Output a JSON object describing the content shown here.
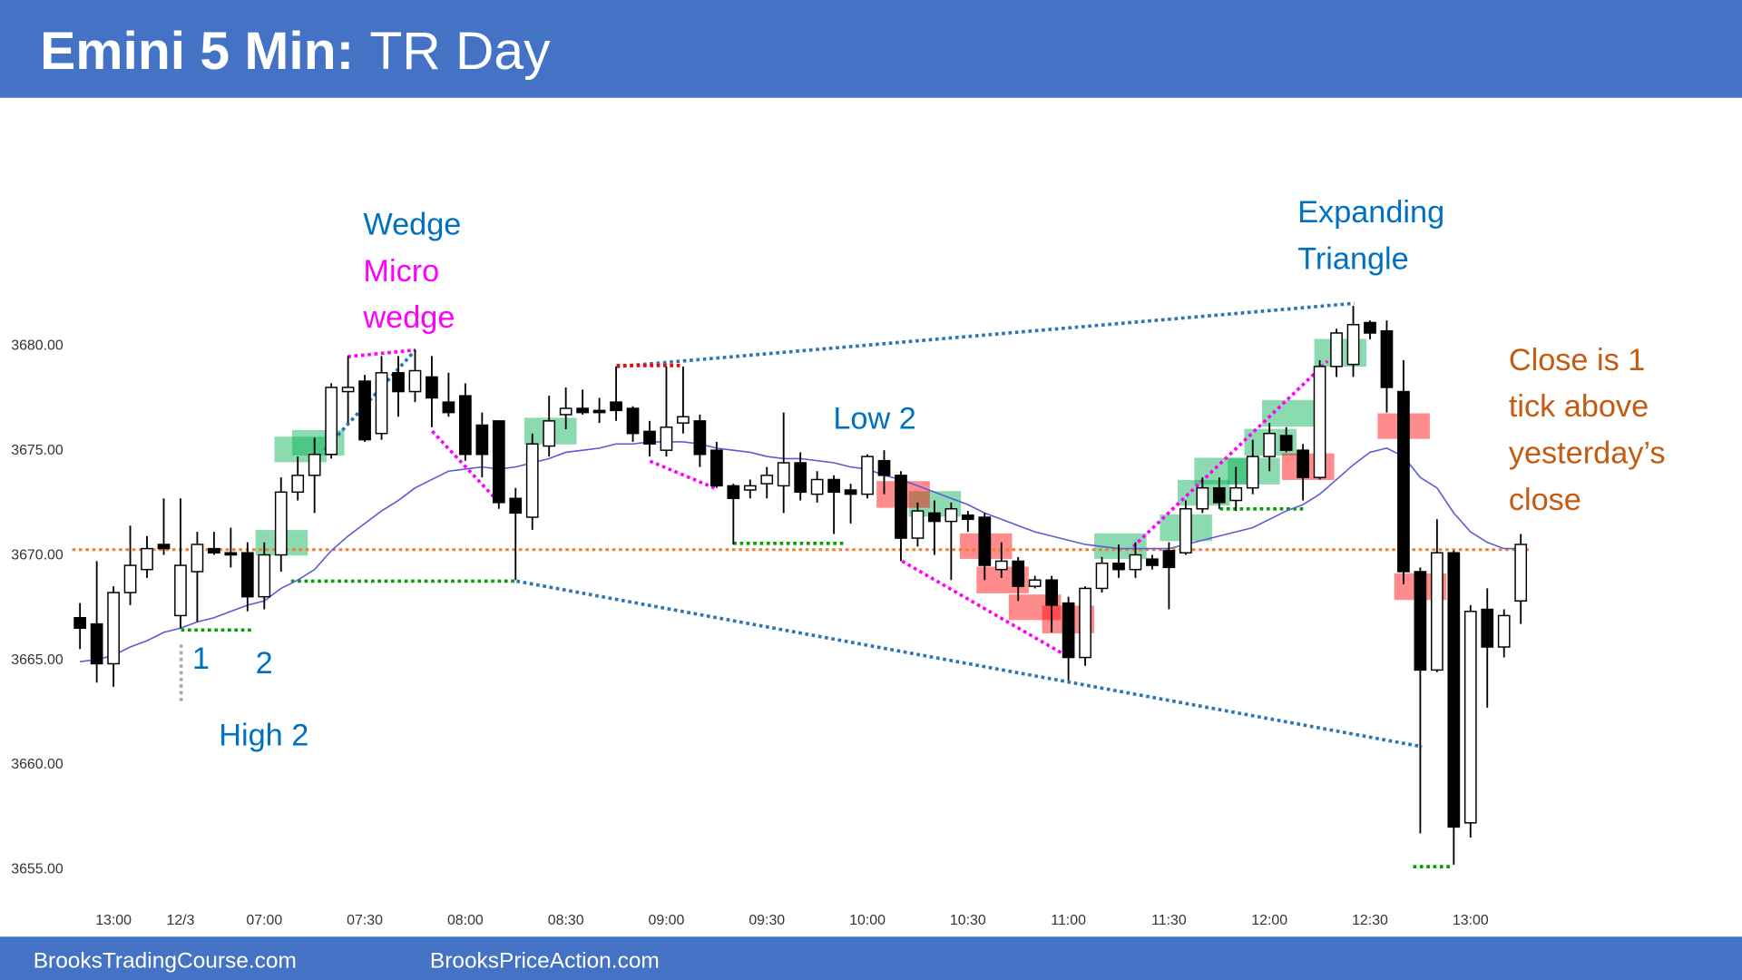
{
  "chart_data": {
    "type": "candlestick",
    "title": "Emini 5 Min:",
    "subtitle": "TR Day",
    "footer": [
      "BrooksTradingCourse.com",
      "BrooksPriceAction.com"
    ],
    "categories": [
      null,
      null,
      "13:00",
      null,
      null,
      null,
      "12/3",
      null,
      null,
      null,
      null,
      "07:00",
      null,
      null,
      null,
      null,
      null,
      "07:30",
      null,
      null,
      null,
      null,
      null,
      "08:00",
      null,
      null,
      null,
      null,
      null,
      "08:30",
      null,
      null,
      null,
      null,
      null,
      "09:00",
      null,
      null,
      null,
      null,
      null,
      "09:30",
      null,
      null,
      null,
      null,
      null,
      "10:00",
      null,
      null,
      null,
      null,
      null,
      "10:30",
      null,
      null,
      null,
      null,
      null,
      "11:00",
      null,
      null,
      null,
      null,
      null,
      "11:30",
      null,
      null,
      null,
      null,
      null,
      "12:00",
      null,
      null,
      null,
      null,
      null,
      "12:30",
      null,
      null,
      null,
      null,
      null,
      "13:00",
      null,
      null,
      null
    ],
    "open": [
      3667.0,
      3666.7,
      3664.8,
      3668.2,
      3669.3,
      3670.5,
      3667.1,
      3669.2,
      3670.3,
      3670.1,
      3670.1,
      3668.0,
      3670.0,
      3673.0,
      3673.8,
      3674.8,
      3677.8,
      3678.3,
      3675.8,
      3678.7,
      3677.8,
      3678.5,
      3677.3,
      3677.6,
      3676.2,
      3676.4,
      3672.7,
      3671.8,
      3675.2,
      3676.7,
      3677.0,
      3676.9,
      3677.3,
      3677.0,
      3675.9,
      3675.0,
      3676.3,
      3676.4,
      3675.0,
      3673.3,
      3673.1,
      3673.4,
      3673.3,
      3674.4,
      3672.9,
      3673.6,
      3673.1,
      3672.9,
      3674.5,
      3673.8,
      3670.8,
      3672.0,
      3671.6,
      3671.9,
      3671.8,
      3669.3,
      3669.7,
      3668.5,
      3668.8,
      3667.7,
      3665.1,
      3668.4,
      3669.6,
      3669.3,
      3669.8,
      3670.2,
      3670.1,
      3672.2,
      3673.2,
      3672.6,
      3673.2,
      3674.7,
      3675.7,
      3675.0,
      3673.7,
      3679.0,
      3679.1,
      3681.1,
      3680.7,
      3677.8,
      3669.2,
      3664.5,
      3670.1,
      3657.2,
      3667.4,
      3665.6,
      3667.8
    ],
    "high": [
      3667.7,
      3669.7,
      3668.5,
      3671.4,
      3670.9,
      3672.7,
      3672.7,
      3671.1,
      3671.1,
      3671.3,
      3670.6,
      3670.6,
      3673.7,
      3674.7,
      3675.6,
      3678.2,
      3679.5,
      3678.6,
      3679.5,
      3679.5,
      3679.8,
      3679.5,
      3678.7,
      3678.2,
      3676.8,
      3676.4,
      3673.2,
      3675.8,
      3677.6,
      3678.0,
      3677.9,
      3677.5,
      3679.0,
      3677.1,
      3676.4,
      3679.0,
      3679.0,
      3676.7,
      3675.4,
      3673.4,
      3673.6,
      3674.2,
      3676.8,
      3674.9,
      3674.0,
      3673.8,
      3673.4,
      3674.8,
      3675.0,
      3674.0,
      3672.5,
      3672.6,
      3672.5,
      3672.1,
      3672.0,
      3670.6,
      3669.9,
      3669.0,
      3669.0,
      3668.0,
      3668.5,
      3669.9,
      3670.5,
      3670.6,
      3670.0,
      3670.6,
      3672.6,
      3673.7,
      3673.7,
      3674.2,
      3675.5,
      3676.3,
      3676.1,
      3675.3,
      3679.3,
      3680.8,
      3681.9,
      3681.2,
      3681.2,
      3679.3,
      3669.4,
      3671.7,
      3670.2,
      3667.6,
      3668.4,
      3667.4,
      3671.0
    ],
    "low": [
      3665.5,
      3663.9,
      3663.7,
      3667.6,
      3668.9,
      3670.0,
      3666.5,
      3666.8,
      3670.0,
      3669.4,
      3667.3,
      3667.4,
      3669.2,
      3672.6,
      3672.0,
      3674.6,
      3676.3,
      3675.4,
      3675.5,
      3676.6,
      3677.3,
      3676.1,
      3676.6,
      3674.5,
      3673.7,
      3672.2,
      3668.8,
      3671.2,
      3674.7,
      3676.0,
      3676.7,
      3676.3,
      3676.4,
      3675.4,
      3674.7,
      3674.7,
      3675.8,
      3674.2,
      3673.2,
      3670.5,
      3672.7,
      3672.7,
      3672.0,
      3672.6,
      3672.5,
      3671.0,
      3671.5,
      3672.7,
      3672.9,
      3669.7,
      3670.4,
      3670.0,
      3668.8,
      3671.1,
      3668.8,
      3668.9,
      3667.8,
      3668.4,
      3666.3,
      3664.0,
      3664.7,
      3668.2,
      3668.9,
      3668.9,
      3669.3,
      3667.4,
      3670.0,
      3672.0,
      3672.2,
      3672.1,
      3672.9,
      3674.0,
      3674.9,
      3672.6,
      3673.6,
      3678.5,
      3678.5,
      3680.3,
      3676.8,
      3668.6,
      3656.7,
      3664.4,
      3655.2,
      3656.5,
      3662.7,
      3665.1,
      3666.7
    ],
    "close": [
      3666.5,
      3664.8,
      3668.2,
      3669.5,
      3670.3,
      3670.3,
      3669.5,
      3670.5,
      3670.1,
      3670.0,
      3668.0,
      3670.0,
      3673.0,
      3673.8,
      3674.8,
      3678.0,
      3678.0,
      3675.5,
      3678.7,
      3677.8,
      3678.8,
      3677.5,
      3676.8,
      3674.8,
      3674.8,
      3672.5,
      3672.0,
      3675.3,
      3676.4,
      3677.0,
      3676.8,
      3676.8,
      3676.9,
      3675.8,
      3675.3,
      3676.1,
      3676.6,
      3674.8,
      3673.3,
      3672.7,
      3673.3,
      3673.8,
      3674.4,
      3673.0,
      3673.6,
      3673.0,
      3672.9,
      3674.7,
      3673.8,
      3670.8,
      3672.1,
      3671.6,
      3672.2,
      3671.7,
      3669.5,
      3669.7,
      3668.5,
      3668.8,
      3667.6,
      3665.1,
      3668.4,
      3669.6,
      3669.3,
      3670.0,
      3669.5,
      3669.4,
      3672.2,
      3673.2,
      3672.5,
      3673.2,
      3674.7,
      3675.8,
      3675.0,
      3673.7,
      3679.0,
      3680.6,
      3681.0,
      3680.6,
      3678.0,
      3669.2,
      3664.5,
      3670.1,
      3657.0,
      3667.3,
      3665.6,
      3667.1,
      3670.5
    ],
    "color_up": "#ffffff",
    "color_down": "#000000",
    "ema": {
      "color": "#5b5bd6",
      "values": [
        3664.9,
        3665.0,
        3665.2,
        3665.6,
        3665.9,
        3666.3,
        3666.5,
        3666.8,
        3667.0,
        3667.3,
        3667.6,
        3667.8,
        3668.4,
        3668.8,
        3669.3,
        3670.2,
        3670.9,
        3671.5,
        3672.1,
        3672.6,
        3673.2,
        3673.6,
        3674.0,
        3674.1,
        3674.2,
        3674.1,
        3674.2,
        3674.4,
        3674.6,
        3674.9,
        3675.0,
        3675.1,
        3675.3,
        3675.3,
        3675.4,
        3675.4,
        3675.4,
        3675.3,
        3675.1,
        3675.0,
        3674.9,
        3674.7,
        3674.6,
        3674.6,
        3674.5,
        3674.4,
        3674.2,
        3674.1,
        3673.8,
        3673.6,
        3673.3,
        3673.0,
        3672.7,
        3672.4,
        3672.0,
        3671.7,
        3671.4,
        3671.1,
        3670.9,
        3670.7,
        3670.5,
        3670.4,
        3670.3,
        3670.3,
        3670.3,
        3670.3,
        3670.5,
        3670.7,
        3670.9,
        3671.1,
        3671.3,
        3671.7,
        3672.1,
        3672.4,
        3672.9,
        3673.6,
        3674.3,
        3674.9,
        3675.1,
        3674.7,
        3673.7,
        3673.2,
        3672.0,
        3671.1,
        3670.6,
        3670.3,
        3670.3
      ]
    },
    "yesterday_close": {
      "value": 3670.25,
      "color": "#ed7d31"
    },
    "ylim": [
      3652,
      3692
    ],
    "yticks": [
      {
        "value": 3655,
        "label": "3655.00"
      },
      {
        "value": 3660,
        "label": "3660.00"
      },
      {
        "value": 3665,
        "label": "3665.00"
      },
      {
        "value": 3670,
        "label": "3670.00"
      },
      {
        "value": 3675,
        "label": "3675.00"
      },
      {
        "value": 3680,
        "label": "3680.00"
      }
    ],
    "grid": false,
    "annotations": [
      "Wedge",
      "Micro",
      "wedge",
      "Expanding",
      "Triangle",
      "Low 2",
      "1",
      "2",
      "High 2",
      "Close is 1",
      "tick above",
      "yesterday’s",
      "close"
    ]
  }
}
